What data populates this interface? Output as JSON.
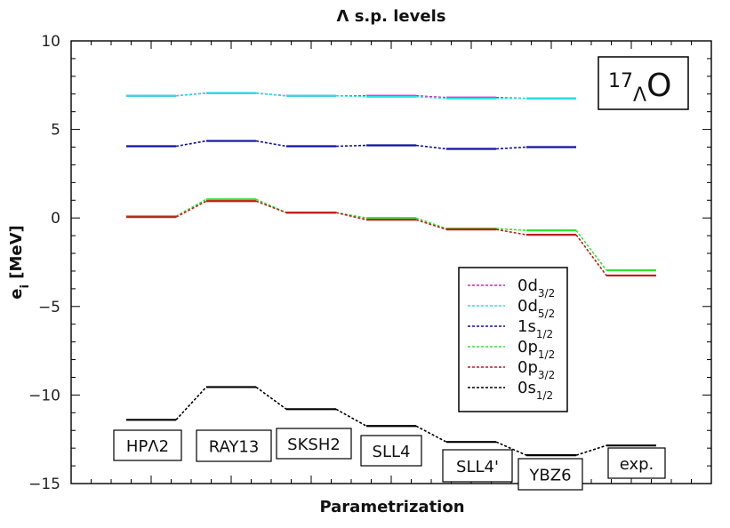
{
  "chart_data": {
    "type": "line",
    "title": "Λ s.p. levels",
    "xlabel": "Parametrization",
    "ylabel": {
      "main": "e",
      "sub": "i",
      "unit": " [MeV]"
    },
    "ylim": [
      -15,
      10
    ],
    "yticks": [
      10,
      5,
      0,
      -5,
      -10,
      -15
    ],
    "ytick_labels": [
      "10",
      "5",
      "0",
      "−5",
      "−10",
      "−15"
    ],
    "categories": [
      "HPΛ2",
      "RAY13",
      "SKSH2",
      "SLL4",
      "SLL4'",
      "YBZ6",
      "exp."
    ],
    "nucleus": {
      "mass": "17",
      "lambda": "Λ",
      "element": "O"
    },
    "grid": false,
    "legend_position": "center-right",
    "series": [
      {
        "name": "0d3/2",
        "label": {
          "main": "0d",
          "sub": "3/2"
        },
        "color": "#d21fd2",
        "values": [
          6.9,
          7.05,
          6.9,
          6.9,
          6.8,
          6.75,
          null
        ]
      },
      {
        "name": "0d5/2",
        "label": {
          "main": "0d",
          "sub": "5/2"
        },
        "color": "#27e0e6",
        "values": [
          6.9,
          7.05,
          6.9,
          6.85,
          6.75,
          6.75,
          null
        ]
      },
      {
        "name": "1s1/2",
        "label": {
          "main": "1s",
          "sub": "1/2"
        },
        "color": "#1010a8",
        "values": [
          4.05,
          4.35,
          4.05,
          4.1,
          3.9,
          4.0,
          null
        ]
      },
      {
        "name": "0p1/2",
        "label": {
          "main": "0p",
          "sub": "1/2"
        },
        "color": "#33e333",
        "values": [
          0.1,
          1.05,
          0.3,
          0.0,
          -0.6,
          -0.7,
          -2.95
        ]
      },
      {
        "name": "0p3/2",
        "label": {
          "main": "0p",
          "sub": "3/2"
        },
        "color": "#c41a1a",
        "values": [
          0.05,
          0.95,
          0.3,
          -0.1,
          -0.65,
          -0.95,
          -3.25
        ]
      },
      {
        "name": "0s1/2",
        "label": {
          "main": "0s",
          "sub": "1/2"
        },
        "color": "#000000",
        "values": [
          -11.4,
          -9.55,
          -10.8,
          -11.75,
          -12.65,
          -13.4,
          -12.85
        ]
      }
    ]
  }
}
